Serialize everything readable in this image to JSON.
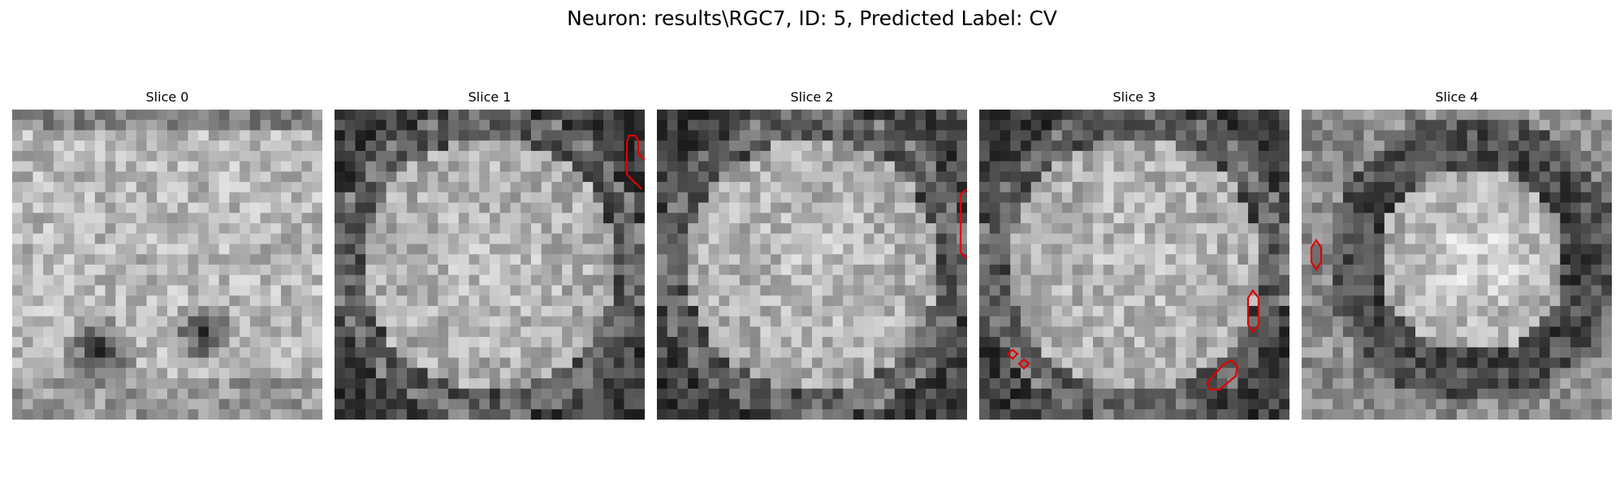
{
  "figure": {
    "title": "Neuron: results\\RGC7, ID: 5, Predicted Label: CV"
  },
  "panels": [
    {
      "title": "Slice 0",
      "contour_count": 0,
      "seed": 11,
      "mode": "dark-blobs"
    },
    {
      "title": "Slice 1",
      "contour_count": 1,
      "seed": 23,
      "mode": "bright-ring"
    },
    {
      "title": "Slice 2",
      "contour_count": 1,
      "seed": 37,
      "mode": "bright-ring"
    },
    {
      "title": "Slice 3",
      "contour_count": 4,
      "seed": 53,
      "mode": "bright-ring"
    },
    {
      "title": "Slice 4",
      "contour_count": 1,
      "seed": 71,
      "mode": "blob-ring"
    }
  ],
  "colors": {
    "contour": "#e00000",
    "background": "#ffffff"
  },
  "image": {
    "colormap": "gray",
    "grid_size": 30
  }
}
